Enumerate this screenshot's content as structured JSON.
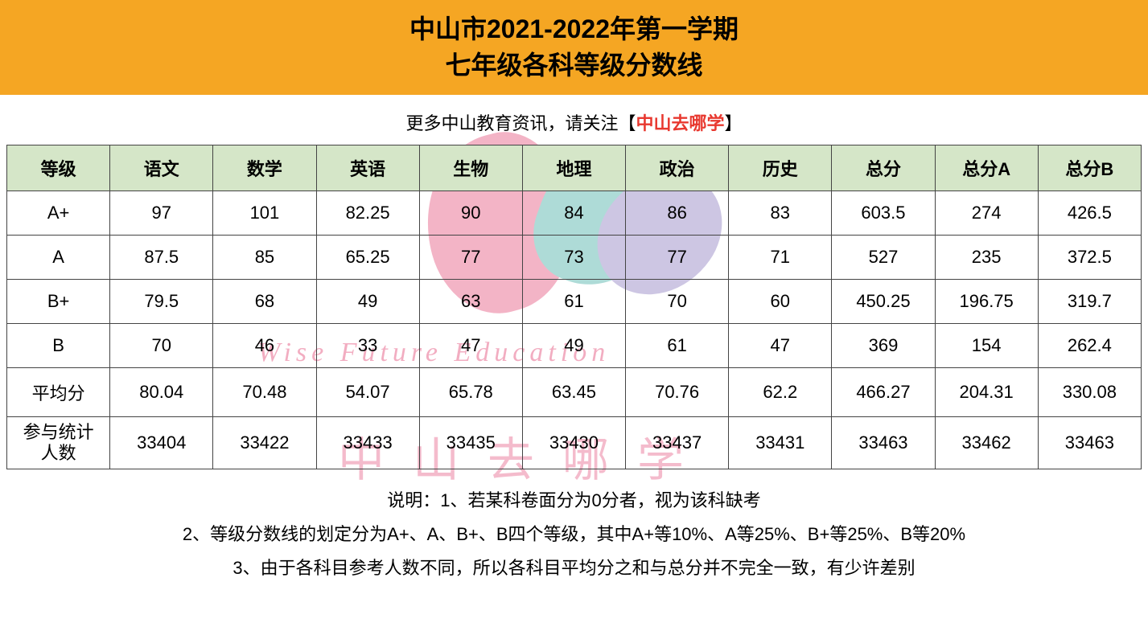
{
  "header": {
    "title_line1": "中山市2021-2022年第一学期",
    "title_line2": "七年级各科等级分数线",
    "banner_bg": "#f5a623",
    "title_color": "#000000",
    "title_fontsize": 32
  },
  "subheader": {
    "prefix": "更多中山教育资讯，请关注【",
    "highlight": "中山去哪学",
    "suffix": "】",
    "highlight_color": "#e8382f",
    "fontsize": 22
  },
  "table": {
    "header_bg": "#d5e6c8",
    "border_color": "#444444",
    "cell_bg": "#ffffff",
    "fontsize": 22,
    "columns": [
      "等级",
      "语文",
      "数学",
      "英语",
      "生物",
      "地理",
      "政治",
      "历史",
      "总分",
      "总分A",
      "总分B"
    ],
    "rows": [
      {
        "label": "A+",
        "values": [
          "97",
          "101",
          "82.25",
          "90",
          "84",
          "86",
          "83",
          "603.5",
          "274",
          "426.5"
        ]
      },
      {
        "label": "A",
        "values": [
          "87.5",
          "85",
          "65.25",
          "77",
          "73",
          "77",
          "71",
          "527",
          "235",
          "372.5"
        ]
      },
      {
        "label": "B+",
        "values": [
          "79.5",
          "68",
          "49",
          "63",
          "61",
          "70",
          "60",
          "450.25",
          "196.75",
          "319.7"
        ]
      },
      {
        "label": "B",
        "values": [
          "70",
          "46",
          "33",
          "47",
          "49",
          "61",
          "47",
          "369",
          "154",
          "262.4"
        ]
      },
      {
        "label": "平均分",
        "values": [
          "80.04",
          "70.48",
          "54.07",
          "65.78",
          "63.45",
          "70.76",
          "62.2",
          "466.27",
          "204.31",
          "330.08"
        ]
      },
      {
        "label": "参与统计\n人数",
        "values": [
          "33404",
          "33422",
          "33433",
          "33435",
          "33430",
          "33437",
          "33431",
          "33463",
          "33462",
          "33463"
        ]
      }
    ]
  },
  "notes": {
    "line1": "说明：1、若某科卷面分为0分者，视为该科缺考",
    "line2": "2、等级分数线的划定分为A+、A、B+、B四个等级，其中A+等10%、A等25%、B+等25%、B等20%",
    "line3": "3、由于各科目参考人数不同，所以各科目平均分之和与总分并不完全一致，有少许差别",
    "fontsize": 22,
    "color": "#000000"
  },
  "watermark": {
    "text1": "Wise Future Education",
    "text2": "中山去哪学",
    "color": "#e86b8f",
    "opacity": 0.5,
    "petal_colors": {
      "pink": "#e86b8f",
      "teal": "#5fb9b0",
      "purple": "#9c8fc9"
    }
  }
}
